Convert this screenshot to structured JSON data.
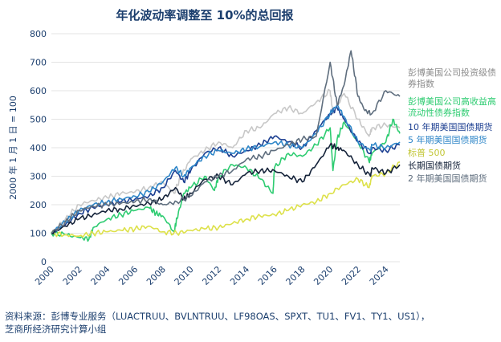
{
  "chart_data": {
    "type": "line",
    "title": "年化波动率调整至 10%的总回报",
    "ylabel": "2000 年 1 月 1 日 = 100",
    "xlim": [
      2000,
      2025
    ],
    "ylim": [
      0,
      800
    ],
    "x_ticks": [
      "2000",
      "2002",
      "2004",
      "2006",
      "2008",
      "2010",
      "2012",
      "2014",
      "2016",
      "2018",
      "2020",
      "2022",
      "2024"
    ],
    "y_ticks": [
      0,
      100,
      200,
      300,
      400,
      500,
      600,
      700,
      800
    ],
    "grid": "horizontal",
    "legend": "right",
    "series": [
      {
        "name": "彭博美国公司投资级债券指数",
        "color": "#c8c8c8",
        "x": [
          2000,
          2001,
          2002,
          2003,
          2004,
          2005,
          2006,
          2007,
          2008,
          2008.8,
          2009.3,
          2010,
          2011,
          2012,
          2013,
          2014,
          2015,
          2016,
          2017,
          2018,
          2019,
          2020,
          2020.2,
          2021,
          2022,
          2022.8,
          2023,
          2024,
          2025
        ],
        "y": [
          100,
          150,
          200,
          215,
          225,
          240,
          245,
          260,
          280,
          240,
          300,
          360,
          390,
          420,
          400,
          460,
          470,
          520,
          540,
          520,
          560,
          600,
          520,
          590,
          500,
          440,
          470,
          480,
          470
        ]
      },
      {
        "name": "彭博美国公司高收益高流动性债券指数",
        "color": "#2ecc71",
        "x": [
          2000,
          2001,
          2002,
          2002.7,
          2003,
          2004,
          2005,
          2006,
          2007,
          2007.5,
          2008,
          2008.8,
          2009,
          2009.5,
          2010,
          2011,
          2011.7,
          2012,
          2013,
          2014,
          2015,
          2015.9,
          2016,
          2017,
          2018,
          2019,
          2020,
          2020.2,
          2020.5,
          2021,
          2022,
          2022.8,
          2023,
          2024,
          2024.5,
          2025
        ],
        "y": [
          100,
          95,
          85,
          80,
          120,
          150,
          165,
          180,
          190,
          170,
          160,
          105,
          150,
          240,
          260,
          300,
          250,
          300,
          340,
          330,
          290,
          240,
          330,
          380,
          370,
          410,
          470,
          320,
          430,
          490,
          420,
          350,
          380,
          420,
          500,
          450
        ]
      },
      {
        "name": "10 年期美国国债期货",
        "color": "#1c3f91",
        "x": [
          2000,
          2001,
          2002,
          2003,
          2004,
          2005,
          2006,
          2007,
          2008,
          2008.9,
          2009.5,
          2010,
          2011,
          2012,
          2013,
          2014,
          2015,
          2016,
          2017,
          2018,
          2019,
          2020,
          2020.5,
          2021,
          2022,
          2022.9,
          2023,
          2024,
          2025
        ],
        "y": [
          100,
          130,
          170,
          190,
          200,
          210,
          220,
          230,
          260,
          320,
          280,
          320,
          380,
          400,
          370,
          390,
          410,
          440,
          420,
          400,
          460,
          520,
          540,
          500,
          420,
          380,
          400,
          390,
          410
        ]
      },
      {
        "name": "5 年期美国国债期货",
        "color": "#2e86c8",
        "x": [
          2000,
          2001,
          2002,
          2003,
          2004,
          2005,
          2006,
          2007,
          2008,
          2008.9,
          2009.5,
          2010,
          2011,
          2012,
          2013,
          2014,
          2015,
          2016,
          2017,
          2018,
          2019,
          2020,
          2020.5,
          2021,
          2022,
          2022.9,
          2023,
          2024,
          2025
        ],
        "y": [
          100,
          140,
          180,
          200,
          210,
          220,
          230,
          245,
          280,
          330,
          300,
          330,
          370,
          390,
          380,
          395,
          405,
          420,
          410,
          400,
          450,
          520,
          550,
          510,
          420,
          390,
          410,
          400,
          420
        ]
      },
      {
        "name": "标普 500",
        "color": "#dde14a",
        "x": [
          2000,
          2001,
          2002,
          2003,
          2004,
          2005,
          2006,
          2007,
          2008,
          2009,
          2010,
          2011,
          2012,
          2013,
          2014,
          2015,
          2016,
          2017,
          2018,
          2019,
          2020,
          2021,
          2022,
          2022.8,
          2023,
          2024,
          2025
        ],
        "y": [
          100,
          95,
          90,
          100,
          105,
          110,
          115,
          125,
          105,
          100,
          110,
          115,
          120,
          135,
          150,
          160,
          165,
          180,
          200,
          210,
          240,
          270,
          290,
          260,
          300,
          310,
          350
        ]
      },
      {
        "name": "长期国债期货",
        "color": "#15233a",
        "x": [
          2000,
          2001,
          2002,
          2003,
          2004,
          2005,
          2006,
          2007,
          2008,
          2008.9,
          2009.5,
          2010,
          2011,
          2012,
          2013,
          2014,
          2015,
          2016,
          2017,
          2018,
          2019,
          2020,
          2020.5,
          2021,
          2022,
          2022.9,
          2023,
          2024,
          2025
        ],
        "y": [
          100,
          125,
          150,
          165,
          180,
          185,
          195,
          205,
          220,
          260,
          220,
          240,
          290,
          300,
          270,
          310,
          320,
          320,
          300,
          280,
          340,
          410,
          400,
          390,
          340,
          300,
          330,
          310,
          340
        ]
      },
      {
        "name": "2 年期美国国债期货",
        "color": "#5f6e7e",
        "x": [
          2000,
          2001,
          2002,
          2003,
          2004,
          2005,
          2006,
          2007,
          2008,
          2009,
          2010,
          2011,
          2012,
          2013,
          2014,
          2015,
          2016,
          2017,
          2018,
          2019,
          2020,
          2020.5,
          2021,
          2021.5,
          2022,
          2022.5,
          2023,
          2024,
          2025
        ],
        "y": [
          100,
          140,
          180,
          195,
          200,
          205,
          210,
          220,
          200,
          210,
          230,
          280,
          300,
          320,
          360,
          370,
          390,
          410,
          430,
          440,
          700,
          550,
          620,
          740,
          580,
          530,
          520,
          600,
          580
        ]
      }
    ]
  },
  "source": {
    "line1": "资料来源：彭博专业服务（LUACTRUU、BVLNTRUU、LF98OAS、SPXT、TU1、FV1、TY1、US1），",
    "line2": "芝商所经济研究计算小组"
  }
}
